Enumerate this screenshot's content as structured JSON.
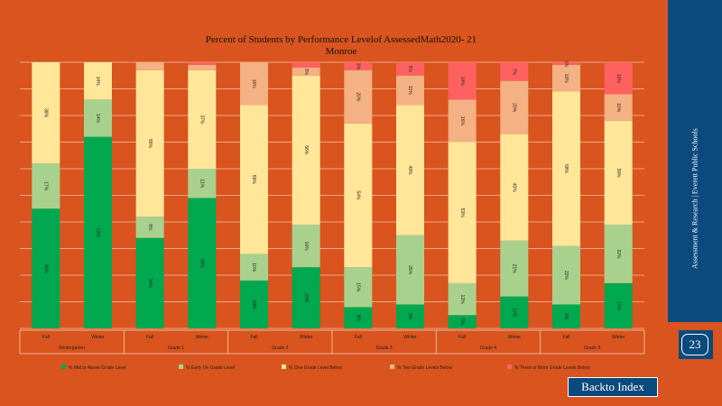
{
  "chart_data": {
    "type": "bar",
    "stacked": true,
    "title": "Percent of Students by Performance Levelof AssessedMath2020- 21",
    "subtitle": "Monroe",
    "categories": [
      {
        "season": "Fall",
        "grade": "Kindergarten"
      },
      {
        "season": "Winter",
        "grade": "Kindergarten"
      },
      {
        "season": "Fall",
        "grade": "Grade 1"
      },
      {
        "season": "Winter",
        "grade": "Grade 1"
      },
      {
        "season": "Fall",
        "grade": "Grade 2"
      },
      {
        "season": "Winter",
        "grade": "Grade 2"
      },
      {
        "season": "Fall",
        "grade": "Grade 3"
      },
      {
        "season": "Winter",
        "grade": "Grade 3"
      },
      {
        "season": "Fall",
        "grade": "Grade 4"
      },
      {
        "season": "Winter",
        "grade": "Grade 4"
      },
      {
        "season": "Fall",
        "grade": "Grade 5"
      },
      {
        "season": "Winter",
        "grade": "Grade 5"
      }
    ],
    "grade_groups": [
      "Kindergarten",
      "Grade 1",
      "Grade 2",
      "Grade 3",
      "Grade 4",
      "Grade 5"
    ],
    "ylim": [
      0,
      100
    ],
    "grid": true,
    "legend_position": "bottom",
    "series": [
      {
        "name": "% Mid or Above Grade Level",
        "color": "#00a94f",
        "values": [
          45,
          72,
          34,
          49,
          18,
          23,
          8,
          9,
          5,
          12,
          9,
          17
        ]
      },
      {
        "name": "% Early On Grade Level",
        "color": "#a9d18e",
        "values": [
          17,
          14,
          8,
          11,
          10,
          16,
          15,
          26,
          12,
          21,
          22,
          22
        ]
      },
      {
        "name": "% One Grade Level Below",
        "color": "#ffe699",
        "values": [
          38,
          14,
          55,
          37,
          56,
          56,
          54,
          49,
          53,
          40,
          58,
          39
        ]
      },
      {
        "name": "% Two Grade Levels Below",
        "color": "#f4b183",
        "values": [
          0,
          0,
          3,
          2,
          16,
          3,
          20,
          11,
          16,
          20,
          10,
          10
        ]
      },
      {
        "name": "% Three or More Grade Levels Below",
        "color": "#ff6161",
        "values": [
          0,
          0,
          0,
          1,
          0,
          2,
          3,
          5,
          14,
          7,
          1,
          12
        ]
      }
    ],
    "data_labels": [
      [
        "45%",
        "17%",
        "38%",
        "",
        ""
      ],
      [
        "72%",
        "14%",
        "14%",
        "",
        ""
      ],
      [
        "34%",
        "8%",
        "55%",
        "",
        ""
      ],
      [
        "49%",
        "11%",
        "37%",
        "",
        ""
      ],
      [
        "18%",
        "10%",
        "56%",
        "16%",
        ""
      ],
      [
        "23%",
        "16%",
        "56%",
        "3%",
        ""
      ],
      [
        "8%",
        "15%",
        "54%",
        "20%",
        "3%"
      ],
      [
        "9%",
        "26%",
        "49%",
        "11%",
        "5%"
      ],
      [
        "5%",
        "12%",
        "53%",
        "16%",
        "14%"
      ],
      [
        "12%",
        "21%",
        "40%",
        "20%",
        "7%"
      ],
      [
        "9%",
        "22%",
        "58%",
        "10%",
        "1%"
      ],
      [
        "17%",
        "22%",
        "39%",
        "10%",
        "12%"
      ]
    ]
  },
  "sidebar": {
    "text": "Assessment & Research | Everett Public Schools",
    "page_number": "23"
  },
  "nav": {
    "back_label": "Backto Index"
  },
  "colors": {
    "background": "#d9541e",
    "panel": "#0a4a7c"
  }
}
